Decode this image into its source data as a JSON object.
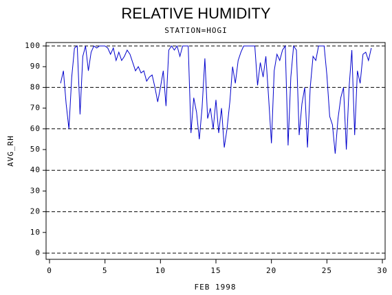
{
  "chart_data": {
    "type": "line",
    "title": "RELATIVE HUMIDITY",
    "subtitle": "STATION=HOGI",
    "xlabel": "FEB 1998",
    "ylabel": "AVG_RH",
    "color": "#0000cc",
    "grid": true,
    "xlim": [
      0,
      30
    ],
    "xticks": [
      0,
      5,
      10,
      15,
      20,
      25,
      30
    ],
    "ylim": [
      0,
      100
    ],
    "yticks": [
      0,
      10,
      20,
      30,
      40,
      50,
      60,
      70,
      80,
      90,
      100
    ],
    "gridticks": [
      0,
      20,
      40,
      60,
      80,
      100
    ],
    "x": [
      1,
      1.25,
      1.5,
      1.75,
      2,
      2.25,
      2.5,
      2.75,
      3,
      3.25,
      3.5,
      3.75,
      4,
      4.25,
      4.5,
      4.75,
      5,
      5.25,
      5.5,
      5.75,
      6,
      6.25,
      6.5,
      6.75,
      7,
      7.25,
      7.5,
      7.75,
      8,
      8.25,
      8.5,
      8.75,
      9,
      9.25,
      9.5,
      9.75,
      10,
      10.25,
      10.5,
      10.75,
      11,
      11.25,
      11.5,
      11.75,
      12,
      12.25,
      12.5,
      12.75,
      13,
      13.25,
      13.5,
      13.75,
      14,
      14.25,
      14.5,
      14.75,
      15,
      15.25,
      15.5,
      15.75,
      16,
      16.25,
      16.5,
      16.75,
      17,
      17.25,
      17.5,
      17.75,
      18,
      18.25,
      18.5,
      18.75,
      19,
      19.25,
      19.5,
      19.75,
      20,
      20.25,
      20.5,
      20.75,
      21,
      21.25,
      21.5,
      21.75,
      22,
      22.25,
      22.5,
      22.75,
      23,
      23.25,
      23.5,
      23.75,
      24,
      24.25,
      24.5,
      24.75,
      25,
      25.25,
      25.5,
      25.75,
      26,
      26.25,
      26.5,
      26.75,
      27,
      27.25,
      27.5,
      27.75,
      28,
      28.25,
      28.5,
      28.75,
      29
    ],
    "values": [
      82,
      88,
      72,
      60,
      85,
      99,
      100,
      67,
      95,
      100,
      88,
      97,
      100,
      99,
      100,
      100,
      100,
      99,
      96,
      99,
      93,
      97,
      93,
      95,
      98,
      96,
      92,
      88,
      90,
      87,
      88,
      83,
      85,
      86,
      80,
      73,
      80,
      88,
      71,
      98,
      100,
      98,
      100,
      95,
      100,
      100,
      100,
      58,
      75,
      68,
      55,
      70,
      94,
      65,
      70,
      60,
      74,
      58,
      70,
      51,
      60,
      73,
      90,
      82,
      93,
      97,
      100,
      100,
      100,
      100,
      100,
      81,
      92,
      85,
      95,
      75,
      53,
      88,
      96,
      93,
      98,
      100,
      52,
      85,
      100,
      98,
      57,
      72,
      80,
      51,
      80,
      95,
      93,
      100,
      100,
      100,
      86,
      66,
      62,
      48,
      65,
      75,
      80,
      50,
      80,
      98,
      57,
      88,
      82,
      96,
      97,
      93,
      99
    ]
  }
}
